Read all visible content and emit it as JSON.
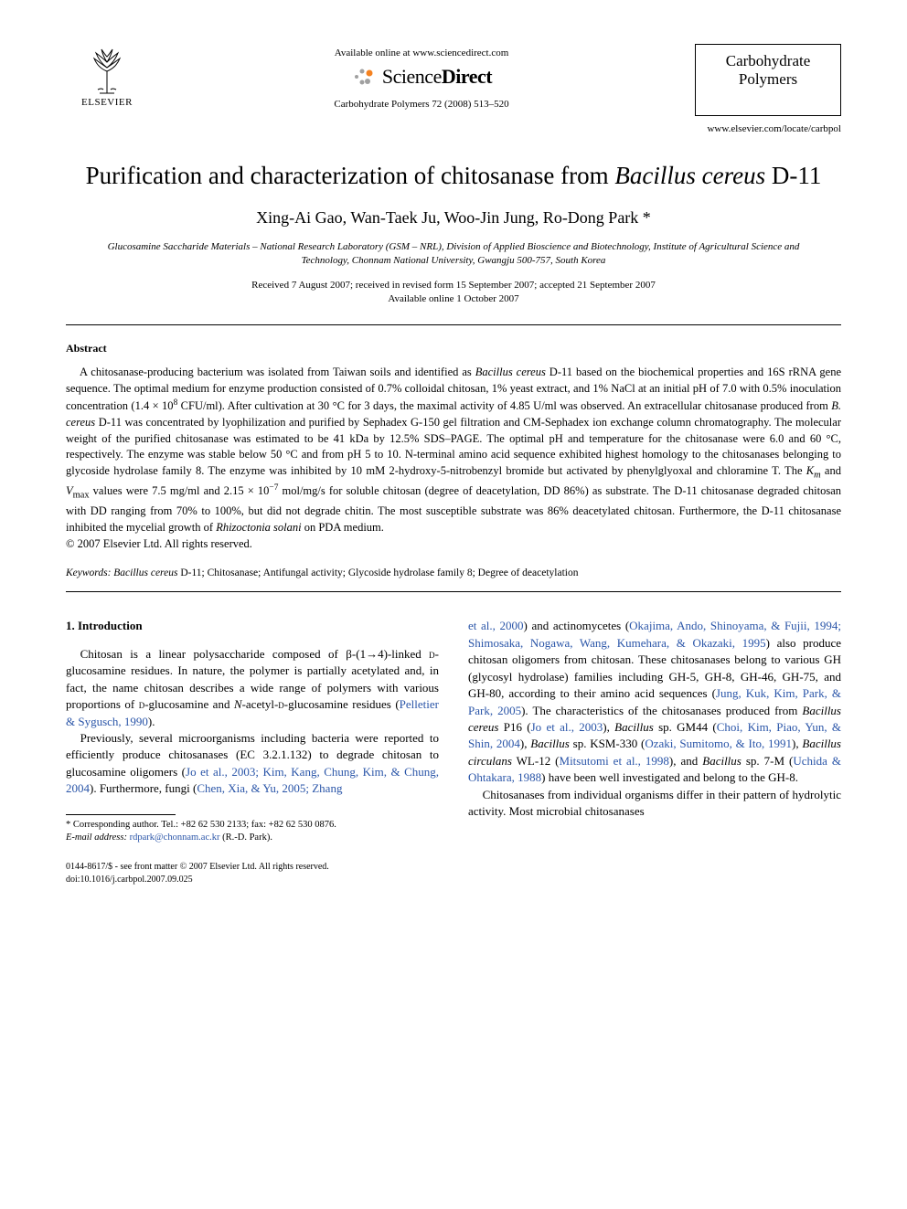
{
  "header": {
    "publisher_label": "ELSEVIER",
    "available_line": "Available online at www.sciencedirect.com",
    "sd_brand_prefix": "Science",
    "sd_brand_suffix": "Direct",
    "journal_ref": "Carbohydrate Polymers 72 (2008) 513–520",
    "journal_box_line1": "Carbohydrate",
    "journal_box_line2": "Polymers",
    "locate": "www.elsevier.com/locate/carbpol"
  },
  "title": {
    "pre": "Purification and characterization of chitosanase from ",
    "italic": "Bacillus cereus",
    "post": " D-11"
  },
  "authors": "Xing-Ai Gao, Wan-Taek Ju, Woo-Jin Jung, Ro-Dong Park *",
  "affiliation": "Glucosamine Saccharide Materials – National Research Laboratory (GSM – NRL), Division of Applied Bioscience and Biotechnology, Institute of Agricultural Science and Technology, Chonnam National University, Gwangju 500-757, South Korea",
  "dates": {
    "received": "Received 7 August 2007; received in revised form 15 September 2007; accepted 21 September 2007",
    "online": "Available online 1 October 2007"
  },
  "abstract": {
    "heading": "Abstract",
    "body_parts": [
      "A chitosanase-producing bacterium was isolated from Taiwan soils and identified as ",
      {
        "ital": "Bacillus cereus"
      },
      " D-11 based on the biochemical properties and 16S rRNA gene sequence. The optimal medium for enzyme production consisted of 0.7% colloidal chitosan, 1% yeast extract, and 1% NaCl at an initial pH of 7.0 with 0.5% inoculation concentration (1.4 × 10",
      {
        "sup": "8"
      },
      " CFU/ml). After cultivation at 30 °C for 3 days, the maximal activity of 4.85 U/ml was observed. An extracellular chitosanase produced from ",
      {
        "ital": "B. cereus"
      },
      " D-11 was concentrated by lyophilization and purified by Sephadex G-150 gel filtration and CM-Sephadex ion exchange column chromatography. The molecular weight of the purified chitosanase was estimated to be 41 kDa by 12.5% SDS–PAGE. The optimal pH and temperature for the chitosanase were 6.0 and 60 °C, respectively. The enzyme was stable below 50 °C and from pH 5 to 10. N-terminal amino acid sequence exhibited highest homology to the chitosanases belonging to glycoside hydrolase family 8. The enzyme was inhibited by 10 mM 2-hydroxy-5-nitrobenzyl bromide but activated by phenylglyoxal and chloramine T. The ",
      {
        "ital": "K"
      },
      {
        "sub_ital": "m"
      },
      " and ",
      {
        "ital": "V"
      },
      {
        "sub": "max"
      },
      " values were 7.5 mg/ml and 2.15 × 10",
      {
        "sup": "−7"
      },
      " mol/mg/s for soluble chitosan (degree of deacetylation, DD 86%) as substrate. The D-11 chitosanase degraded chitosan with DD ranging from 70% to 100%, but did not degrade chitin. The most susceptible substrate was 86% deacetylated chitosan. Furthermore, the D-11 chitosanase inhibited the mycelial growth of ",
      {
        "ital": "Rhizoctonia solani"
      },
      " on PDA medium."
    ],
    "copyright": "© 2007 Elsevier Ltd. All rights reserved."
  },
  "keywords": {
    "label": "Keywords:",
    "items": "Bacillus cereus D-11; Chitosanase; Antifungal activity; Glycoside hydrolase family 8; Degree of deacetylation",
    "ital_species": "Bacillus cereus"
  },
  "intro": {
    "heading": "1. Introduction",
    "p1_parts": [
      "Chitosan is a linear polysaccharide composed of β-(1→4)-linked ",
      {
        "sc": "d"
      },
      "-glucosamine residues. In nature, the polymer is partially acetylated and, in fact, the name chitosan describes a wide range of polymers with various proportions of ",
      {
        "sc": "d"
      },
      "-glucosamine and ",
      {
        "ital": "N"
      },
      "-acetyl-",
      {
        "sc": "d"
      },
      "-glucosamine residues (",
      {
        "link": "Pelletier & Sygusch, 1990"
      },
      ")."
    ],
    "p2_parts": [
      "Previously, several microorganisms including bacteria were reported to efficiently produce chitosanases (EC 3.2.1.132) to degrade chitosan to glucosamine oligomers (",
      {
        "link": "Jo et al., 2003; Kim, Kang, Chung, Kim, & Chung, 2004"
      },
      "). Furthermore, fungi (",
      {
        "link": "Chen, Xia, & Yu, 2005; Zhang"
      }
    ],
    "col2_cont_parts": [
      {
        "link": "et al., 2000"
      },
      ") and actinomycetes (",
      {
        "link": "Okajima, Ando, Shinoyama, & Fujii, 1994; Shimosaka, Nogawa, Wang, Kumehara, & Okazaki, 1995"
      },
      ") also produce chitosan oligomers from chitosan. These chitosanases belong to various GH (glycosyl hydrolase) families including GH-5, GH-8, GH-46, GH-75, and GH-80, according to their amino acid sequences (",
      {
        "link": "Jung, Kuk, Kim, Park, & Park, 2005"
      },
      "). The characteristics of the chitosanases produced from ",
      {
        "ital": "Bacillus cereus"
      },
      " P16 (",
      {
        "link": "Jo et al., 2003"
      },
      "), ",
      {
        "ital": "Bacillus"
      },
      " sp. GM44 (",
      {
        "link": "Choi, Kim, Piao, Yun, & Shin, 2004"
      },
      "), ",
      {
        "ital": "Bacillus"
      },
      " sp. KSM-330 (",
      {
        "link": "Ozaki, Sumitomo, & Ito, 1991"
      },
      "), ",
      {
        "ital": "Bacillus circulans"
      },
      " WL-12 (",
      {
        "link": "Mitsutomi et al., 1998"
      },
      "), and ",
      {
        "ital": "Bacillus"
      },
      " sp. 7-M (",
      {
        "link": "Uchida & Ohtakara, 1988"
      },
      ") have been well investigated and belong to the GH-8."
    ],
    "p3": "Chitosanases from individual organisms differ in their pattern of hydrolytic activity. Most microbial chitosanases"
  },
  "footnotes": {
    "corr": "* Corresponding author. Tel.: +82 62 530 2133; fax: +82 62 530 0876.",
    "email_label": "E-mail address:",
    "email": "rdpark@chonnam.ac.kr",
    "email_paren": " (R.-D. Park)."
  },
  "footer": {
    "line1": "0144-8617/$ - see front matter © 2007 Elsevier Ltd. All rights reserved.",
    "line2": "doi:10.1016/j.carbpol.2007.09.025"
  },
  "colors": {
    "link": "#2a55a8",
    "text": "#000000",
    "bg": "#ffffff",
    "sd_orange": "#f58220",
    "sd_grey": "#a0a0a0"
  }
}
